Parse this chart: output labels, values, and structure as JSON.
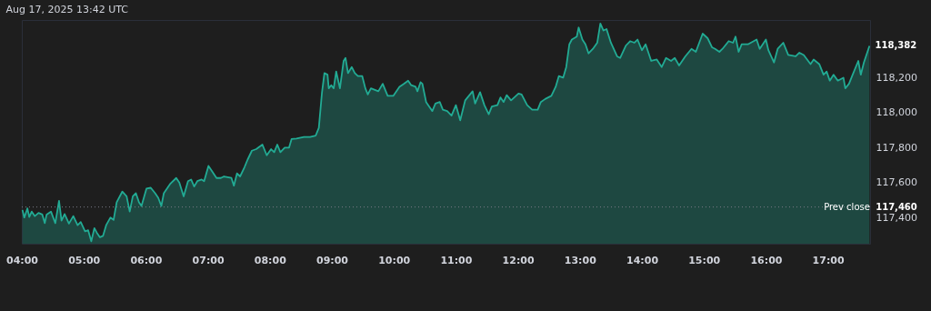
{
  "chart_data": {
    "type": "area",
    "annotations": [
      "Aug 17, 2025 13:42 UTC",
      {
        "text": "118,382",
        "x": 17.67,
        "y": 118382
      },
      {
        "text": "117,460",
        "x": 17.68,
        "y": 117460
      }
    ],
    "x": [
      4.01,
      4.04,
      4.09,
      4.12,
      4.16,
      4.21,
      4.27,
      4.33,
      4.37,
      4.4,
      4.47,
      4.54,
      4.6,
      4.64,
      4.69,
      4.76,
      4.83,
      4.9,
      4.95,
      5.02,
      5.07,
      5.12,
      5.17,
      5.21,
      5.26,
      5.31,
      5.36,
      5.43,
      5.48,
      5.53,
      5.62,
      5.69,
      5.74,
      5.79,
      5.84,
      5.89,
      5.93,
      6.01,
      6.08,
      6.15,
      6.2,
      6.25,
      6.29,
      6.39,
      6.49,
      6.54,
      6.61,
      6.68,
      6.73,
      6.78,
      6.83,
      6.9,
      6.94,
      7.01,
      7.06,
      7.14,
      7.21,
      7.26,
      7.38,
      7.42,
      7.47,
      7.52,
      7.59,
      7.64,
      7.71,
      7.78,
      7.88,
      7.95,
      8.02,
      8.07,
      8.12,
      8.17,
      8.24,
      8.31,
      8.35,
      8.43,
      8.55,
      8.65,
      8.74,
      8.79,
      8.84,
      8.88,
      8.93,
      8.95,
      8.99,
      9.03,
      9.07,
      9.13,
      9.19,
      9.22,
      9.26,
      9.32,
      9.37,
      9.42,
      9.49,
      9.54,
      9.58,
      9.63,
      9.75,
      9.82,
      9.9,
      9.99,
      10.09,
      10.16,
      10.23,
      10.28,
      10.35,
      10.38,
      10.43,
      10.46,
      10.52,
      10.57,
      10.62,
      10.67,
      10.74,
      10.79,
      10.86,
      10.93,
      11.0,
      11.07,
      11.15,
      11.27,
      11.31,
      11.39,
      11.46,
      11.53,
      11.58,
      11.67,
      11.72,
      11.77,
      11.82,
      11.89,
      12.01,
      12.06,
      12.15,
      12.23,
      12.32,
      12.37,
      12.44,
      12.54,
      12.61,
      12.66,
      12.73,
      12.78,
      12.83,
      12.87,
      12.95,
      12.98,
      13.04,
      13.09,
      13.14,
      13.21,
      13.28,
      13.33,
      13.38,
      13.43,
      13.5,
      13.6,
      13.65,
      13.74,
      13.81,
      13.88,
      13.93,
      14.0,
      14.06,
      14.15,
      14.24,
      14.32,
      14.39,
      14.47,
      14.53,
      14.6,
      14.7,
      14.8,
      14.87,
      14.98,
      15.06,
      15.13,
      15.18,
      15.25,
      15.3,
      15.4,
      15.47,
      15.51,
      15.56,
      15.61,
      15.71,
      15.85,
      15.9,
      16.0,
      16.04,
      16.13,
      16.19,
      16.28,
      16.36,
      16.48,
      16.54,
      16.61,
      16.72,
      16.77,
      16.86,
      16.93,
      16.98,
      17.03,
      17.09,
      17.16,
      17.25,
      17.28,
      17.34,
      17.39,
      17.49,
      17.53,
      17.58,
      17.67
    ],
    "series": [
      {
        "color": "#22ab94",
        "values": [
          117443,
          117400,
          117452,
          117403,
          117434,
          117408,
          117426,
          117417,
          117368,
          117417,
          117434,
          117368,
          117495,
          117382,
          117420,
          117365,
          117408,
          117356,
          117374,
          117321,
          117327,
          117264,
          117339,
          117313,
          117287,
          117295,
          117356,
          117400,
          117386,
          117487,
          117548,
          117521,
          117434,
          117521,
          117539,
          117487,
          117466,
          117565,
          117570,
          117539,
          117513,
          117466,
          117539,
          117591,
          117626,
          117600,
          117521,
          117608,
          117617,
          117577,
          117608,
          117617,
          117608,
          117695,
          117669,
          117626,
          117626,
          117635,
          117626,
          117582,
          117652,
          117635,
          117687,
          117730,
          117782,
          117791,
          117817,
          117756,
          117791,
          117774,
          117817,
          117774,
          117800,
          117800,
          117849,
          117852,
          117861,
          117861,
          117869,
          117913,
          118113,
          118226,
          118217,
          118139,
          118157,
          118139,
          118235,
          118139,
          118296,
          118313,
          118226,
          118261,
          118226,
          118209,
          118209,
          118139,
          118104,
          118139,
          118122,
          118165,
          118096,
          118096,
          118148,
          118165,
          118183,
          118157,
          118148,
          118122,
          118174,
          118165,
          118061,
          118035,
          118009,
          118052,
          118061,
          118017,
          118009,
          117983,
          118043,
          117956,
          118070,
          118122,
          118052,
          118117,
          118043,
          117991,
          118035,
          118043,
          118087,
          118061,
          118100,
          118070,
          118109,
          118104,
          118043,
          118017,
          118017,
          118061,
          118078,
          118096,
          118148,
          118209,
          118200,
          118261,
          118391,
          118418,
          118435,
          118487,
          118418,
          118391,
          118339,
          118365,
          118400,
          118510,
          118470,
          118478,
          118400,
          118322,
          118313,
          118383,
          118409,
          118400,
          118418,
          118357,
          118391,
          118296,
          118304,
          118261,
          118313,
          118296,
          118313,
          118270,
          118322,
          118365,
          118348,
          118452,
          118426,
          118374,
          118365,
          118348,
          118365,
          118409,
          118400,
          118435,
          118348,
          118391,
          118391,
          118418,
          118365,
          118418,
          118357,
          118287,
          118365,
          118400,
          118330,
          118322,
          118343,
          118330,
          118278,
          118304,
          118278,
          118217,
          118235,
          118183,
          118217,
          118183,
          118200,
          118139,
          118165,
          118209,
          118296,
          118217,
          118287,
          118382
        ]
      }
    ],
    "xlim": [
      4.0,
      17.68
    ],
    "xticks": [
      {
        "value": 4,
        "label": "04:00"
      },
      {
        "value": 5,
        "label": "05:00"
      },
      {
        "value": 6,
        "label": "06:00"
      },
      {
        "value": 7,
        "label": "07:00"
      },
      {
        "value": 8,
        "label": "08:00"
      },
      {
        "value": 9,
        "label": "09:00"
      },
      {
        "value": 10,
        "label": "10:00"
      },
      {
        "value": 11,
        "label": "11:00"
      },
      {
        "value": 12,
        "label": "12:00"
      },
      {
        "value": 13,
        "label": "13:00"
      },
      {
        "value": 14,
        "label": "14:00"
      },
      {
        "value": 15,
        "label": "15:00"
      },
      {
        "value": 16,
        "label": "16:00"
      },
      {
        "value": 17,
        "label": "17:00"
      }
    ],
    "ylim": [
      117250,
      118530
    ],
    "yticks": [
      {
        "value": 117400,
        "label": "117,400"
      },
      {
        "value": 117600,
        "label": "117,600"
      },
      {
        "value": 117800,
        "label": "117,800"
      },
      {
        "value": 118000,
        "label": "118,000"
      },
      {
        "value": 118200,
        "label": "118,200"
      }
    ],
    "ref_lines": [
      {
        "axis": "y",
        "value": 117460,
        "label": "Prev close",
        "color": "#787b86",
        "line_style": "dotted"
      }
    ]
  }
}
